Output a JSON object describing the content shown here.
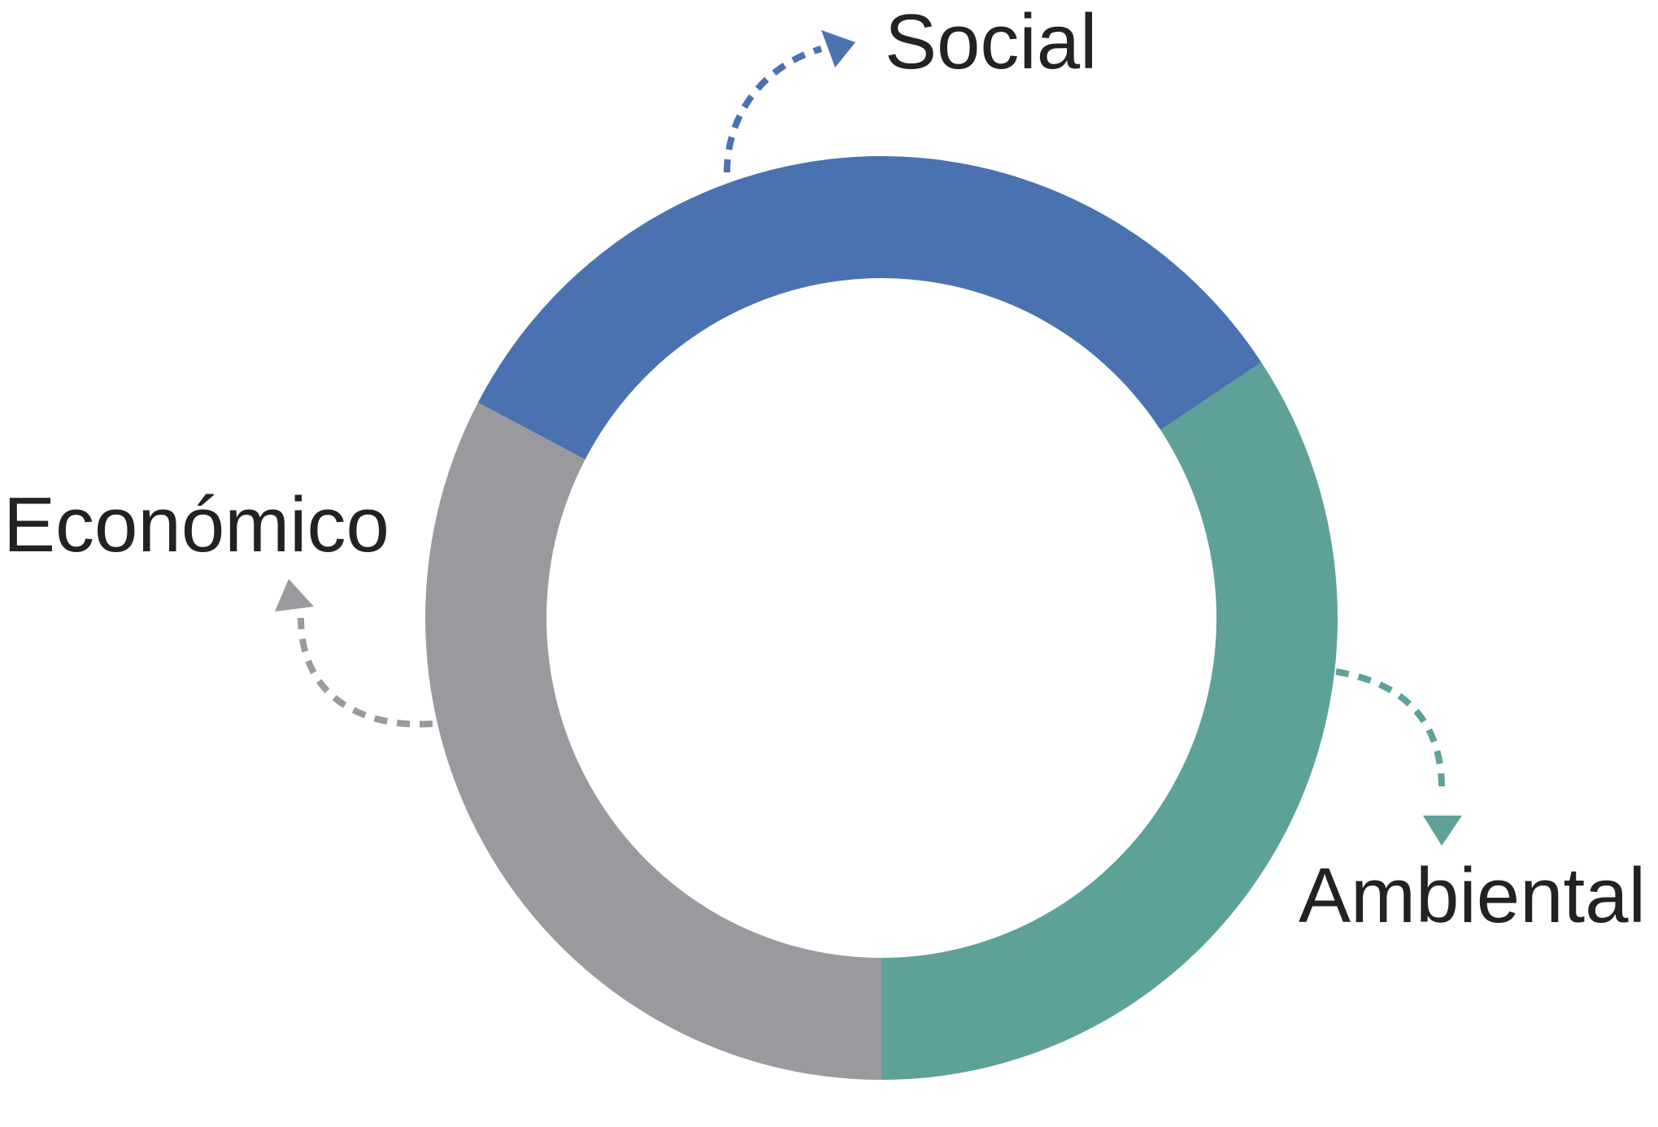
{
  "diagram": {
    "segments": [
      {
        "id": "social",
        "label": "Social",
        "color": "#4a72b0",
        "start_deg": -62.2,
        "end_deg": 56.4
      },
      {
        "id": "ambiental",
        "label": "Ambiental",
        "color": "#5ea199",
        "start_deg": 56.4,
        "end_deg": 180
      },
      {
        "id": "economico",
        "label": "Económico",
        "color": "#9a9a9e",
        "start_deg": 180,
        "end_deg": 297.8
      }
    ],
    "arrow_style": "dashed",
    "arrow_colors": {
      "social": "#4a72b0",
      "ambiental": "#5ea199",
      "economico": "#9a9a9e"
    }
  }
}
